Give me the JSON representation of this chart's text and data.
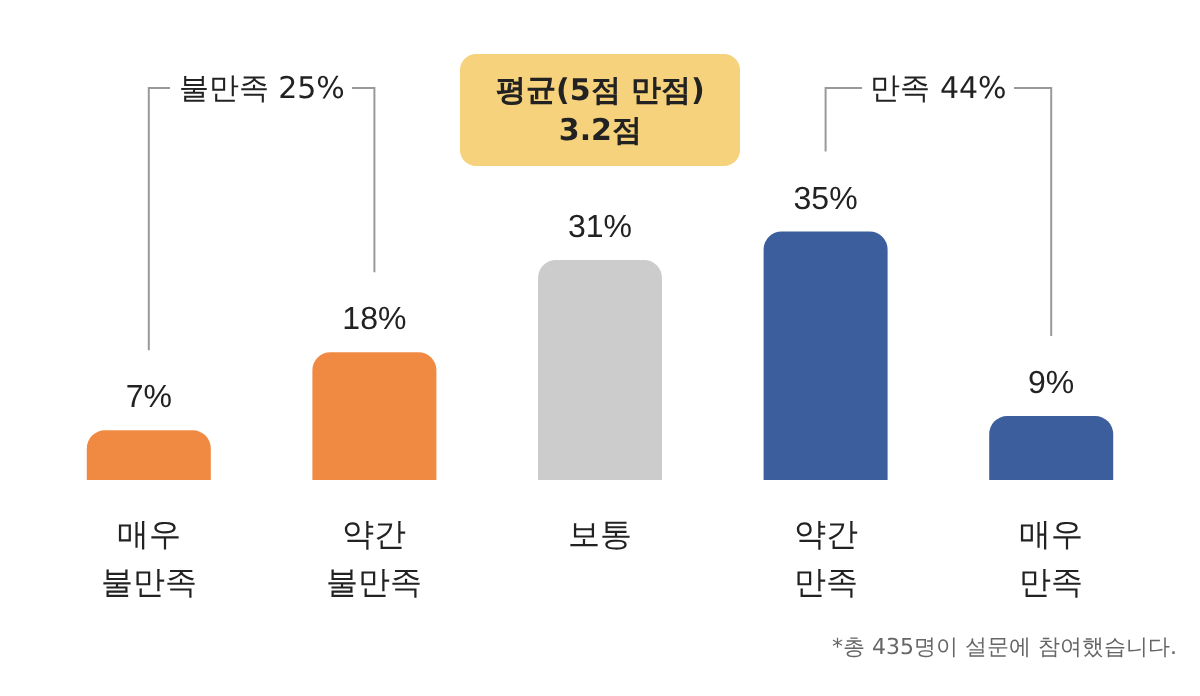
{
  "chart_data": {
    "type": "bar",
    "categories": [
      "매우\n불만족",
      "약간\n불만족",
      "보통",
      "약간\n만족",
      "매우\n만족"
    ],
    "values": [
      7,
      18,
      31,
      35,
      9
    ],
    "colors": [
      "#f08a43",
      "#f08a43",
      "#cccccc",
      "#3d5e9c",
      "#3d5e9c"
    ],
    "value_labels": [
      "7%",
      "18%",
      "31%",
      "35%",
      "9%"
    ],
    "annotations": [
      "불만족 25%",
      "평균(5점 만점)\n3.2점",
      "만족 44%",
      "*총 435명이 설문에 참여했습니다."
    ],
    "grid": false
  }
}
